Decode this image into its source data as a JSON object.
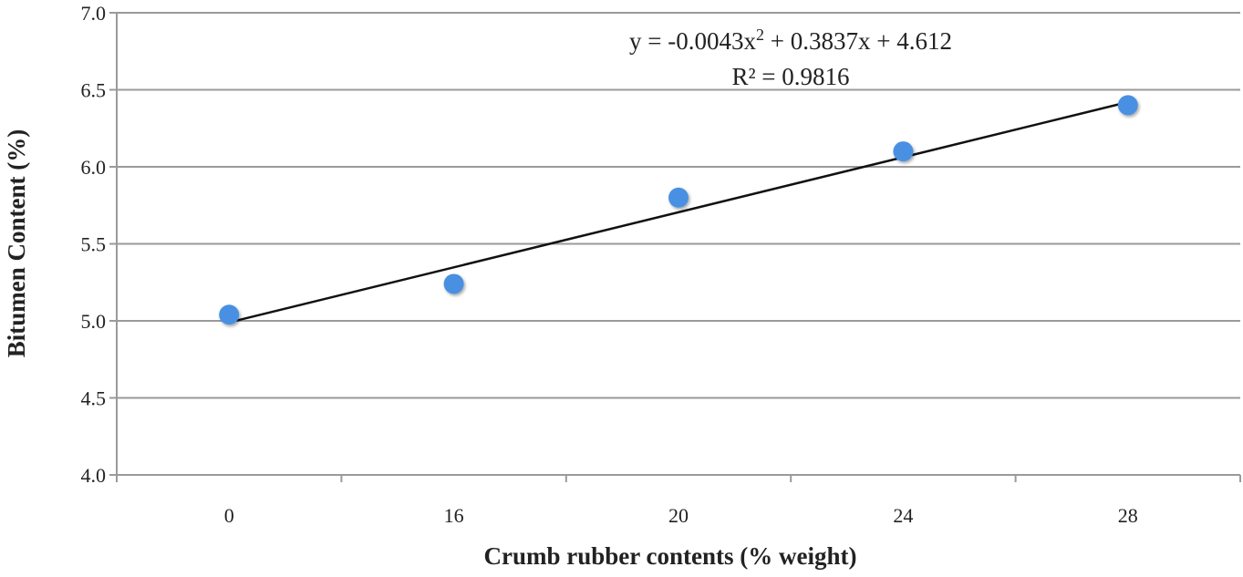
{
  "chart_data": {
    "type": "scatter",
    "xlabel": "Crumb rubber contents (% weight)",
    "ylabel": "Bitumen Content  (%)",
    "categories": [
      "0",
      "16",
      "20",
      "24",
      "28"
    ],
    "ylim": [
      4.0,
      7.0
    ],
    "yticks": [
      "4.0",
      "4.5",
      "5.0",
      "5.5",
      "6.0",
      "6.5",
      "7.0"
    ],
    "grid": "horizontal",
    "colors": {
      "points": "#4a90e2",
      "trendline": "#111111",
      "grid": "#9a9a9a"
    },
    "series": [
      {
        "values": [
          5.04,
          5.24,
          5.8,
          6.1,
          6.4
        ]
      }
    ],
    "trendline": {
      "type": "polynomial",
      "order": 2,
      "coefficients": [
        -0.0043,
        0.3837,
        4.612
      ],
      "start_value": 4.99,
      "end_value": 6.42,
      "equation_text": "y = -0.0043x",
      "equation_sup": "2",
      "equation_rest": " + 0.3837x + 4.612",
      "r2_text": "R² = 0.9816"
    }
  }
}
